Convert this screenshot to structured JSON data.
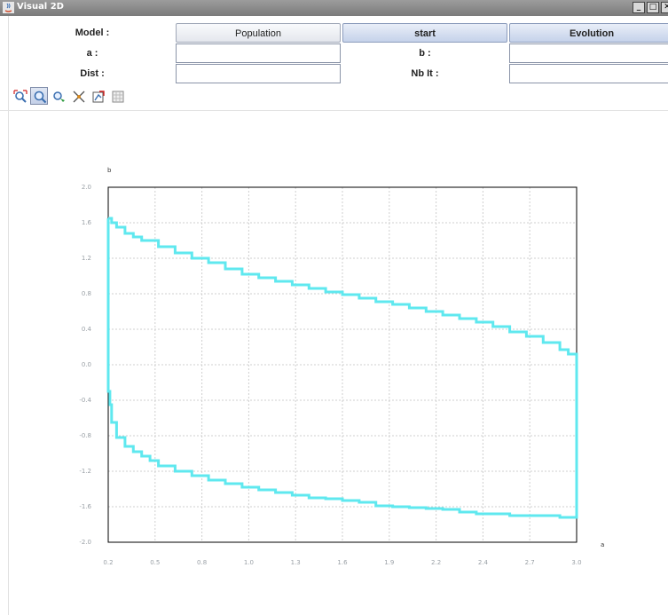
{
  "window": {
    "title": "Visual 2D",
    "controls": [
      "_",
      "□",
      "✕"
    ]
  },
  "form": {
    "model_label": "Model :",
    "population_label": "Population",
    "start_label": "start",
    "evolution_label": "Evolution",
    "a_label": "a :",
    "a_value": "",
    "b_label": "b :",
    "b_value": "",
    "dist_label": "Dist :",
    "dist_value": "",
    "nbit_label": "Nb It :",
    "nbit_value": ""
  },
  "toolbar": {
    "tools": [
      "zoom-region-icon",
      "zoom-icon",
      "pan-icon",
      "reset-view-icon",
      "export-icon",
      "grid-icon"
    ]
  },
  "chart_data": {
    "type": "line",
    "xlabel": "a",
    "ylabel": "b",
    "xlim": [
      0.2,
      3.0
    ],
    "ylim": [
      -2.0,
      2.0
    ],
    "xticks": [
      "0.2",
      "0.5",
      "0.8",
      "1.0",
      "1.3",
      "1.6",
      "1.9",
      "2.2",
      "2.4",
      "2.7",
      "3.0"
    ],
    "yticks": [
      "2.0",
      "1.6",
      "1.2",
      "0.8",
      "0.4",
      "0.0",
      "-0.4",
      "-0.8",
      "-1.2",
      "-1.6",
      "-2.0"
    ],
    "grid": true,
    "series_color": "#5fe8ef",
    "series": [
      {
        "x": [
          0.2,
          0.2,
          0.22,
          0.25,
          0.3,
          0.35,
          0.4,
          0.5,
          0.6,
          0.7,
          0.8,
          0.9,
          1.0,
          1.1,
          1.2,
          1.3,
          1.4,
          1.5,
          1.6,
          1.7,
          1.8,
          1.9,
          2.0,
          2.1,
          2.2,
          2.3,
          2.4,
          2.5,
          2.6,
          2.7,
          2.8,
          2.9,
          2.95,
          3.0,
          3.0,
          2.95,
          2.9,
          2.8,
          2.7,
          2.6,
          2.5,
          2.4,
          2.3,
          2.2,
          2.1,
          2.0,
          1.9,
          1.8,
          1.7,
          1.6,
          1.5,
          1.4,
          1.3,
          1.2,
          1.1,
          1.0,
          0.9,
          0.8,
          0.7,
          0.6,
          0.5,
          0.45,
          0.4,
          0.35,
          0.3,
          0.25,
          0.22,
          0.21,
          0.2,
          0.2
        ],
        "y": [
          1.65,
          1.65,
          1.6,
          1.55,
          1.48,
          1.44,
          1.4,
          1.33,
          1.26,
          1.2,
          1.15,
          1.08,
          1.02,
          0.98,
          0.94,
          0.9,
          0.86,
          0.82,
          0.79,
          0.75,
          0.71,
          0.68,
          0.64,
          0.6,
          0.56,
          0.52,
          0.48,
          0.43,
          0.37,
          0.32,
          0.25,
          0.17,
          0.12,
          0.1,
          -1.72,
          -1.72,
          -1.7,
          -1.7,
          -1.7,
          -1.68,
          -1.68,
          -1.66,
          -1.63,
          -1.62,
          -1.61,
          -1.6,
          -1.59,
          -1.55,
          -1.53,
          -1.51,
          -1.5,
          -1.47,
          -1.44,
          -1.41,
          -1.38,
          -1.34,
          -1.3,
          -1.25,
          -1.2,
          -1.14,
          -1.08,
          -1.03,
          -0.98,
          -0.92,
          -0.82,
          -0.65,
          -0.45,
          -0.3,
          -0.1,
          1.65
        ]
      }
    ]
  }
}
